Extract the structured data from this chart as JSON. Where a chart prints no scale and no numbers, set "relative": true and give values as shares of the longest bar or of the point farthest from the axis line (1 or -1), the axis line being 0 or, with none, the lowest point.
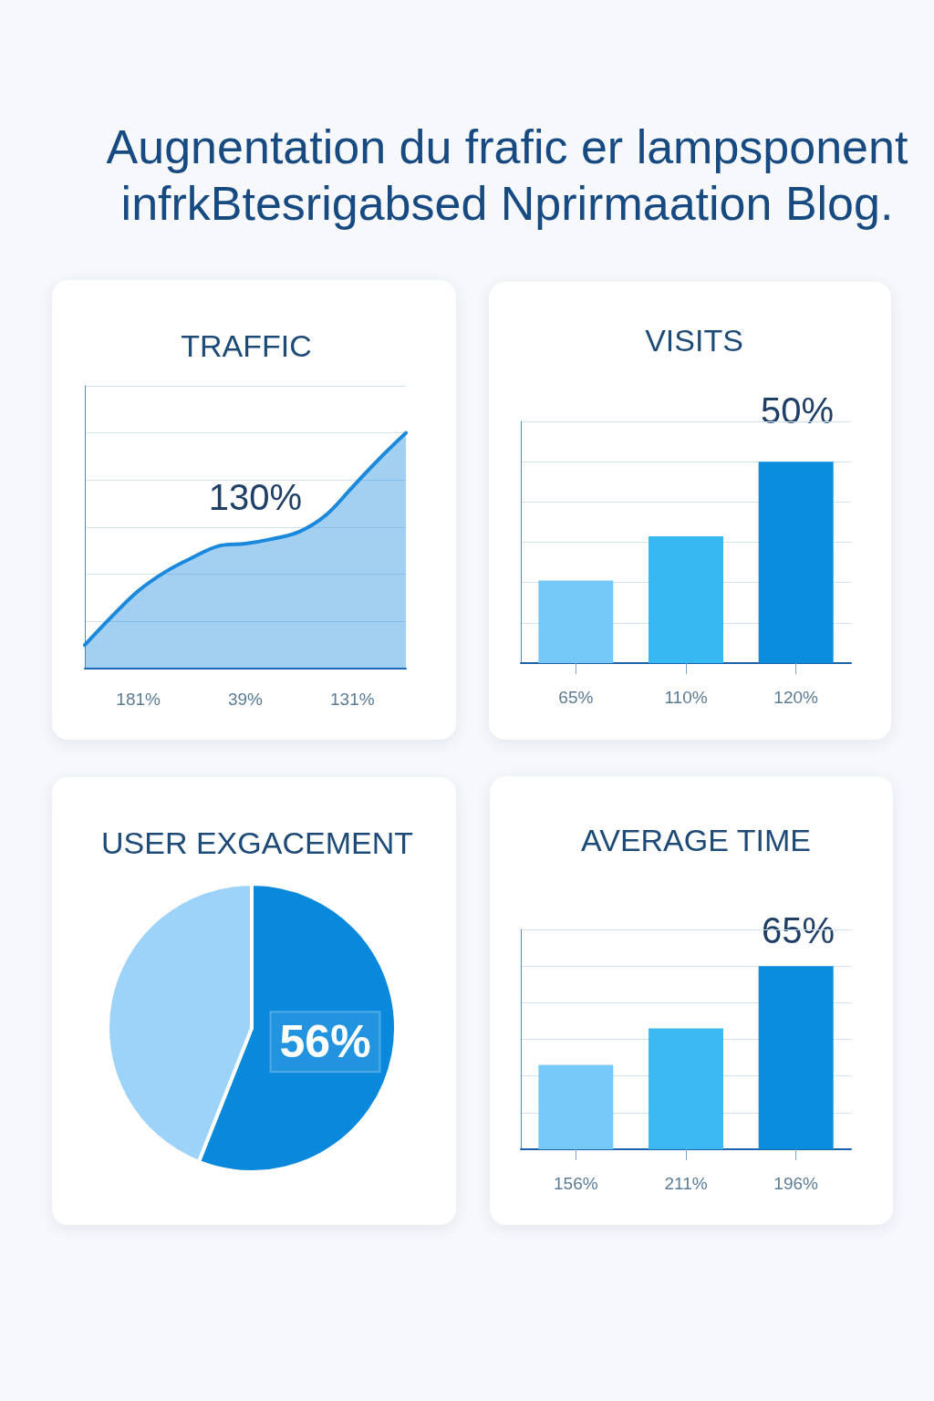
{
  "chart_data": [
    {
      "type": "other",
      "title": "Augnentation du frafic er lampsponent infrkBtesrigabsed Nprirmaation Blog."
    },
    {
      "type": "area",
      "title": "TRAFFIC",
      "categories": [
        null,
        null,
        "181%",
        null,
        null,
        null,
        "39%",
        null,
        null,
        null,
        "131%",
        null,
        null
      ],
      "values": [
        0.1,
        0.22,
        0.33,
        0.41,
        0.47,
        0.52,
        0.53,
        0.55,
        0.58,
        0.65,
        0.77,
        0.89,
        1
      ],
      "color": "#1a88dd",
      "relative": true,
      "grid": "y",
      "annotations": [
        "130%"
      ]
    },
    {
      "type": "bar",
      "title": "VISITS",
      "categories": [
        "65%",
        "110%",
        "120%"
      ],
      "values": [
        0.41,
        0.63,
        1
      ],
      "colors": [
        "#74c8f8",
        "#38b8f2",
        "#0b8ddd"
      ],
      "relative": true,
      "grid": "y",
      "annotations": [
        "50%"
      ]
    },
    {
      "type": "pie",
      "title": "USER EXGACEMENT",
      "categories": [
        null,
        null
      ],
      "values": [
        56,
        44
      ],
      "colors": [
        "#0a88dc",
        "#9dd3f9"
      ],
      "value_labels": [
        "56%",
        null
      ]
    },
    {
      "type": "bar",
      "title": "AVERAGE TIME",
      "categories": [
        "156%",
        "211%",
        "196%"
      ],
      "values": [
        0.46,
        0.66,
        1
      ],
      "colors": [
        "#76c9f8",
        "#3ab9f2",
        "#0b8ddd"
      ],
      "relative": true,
      "grid": "y",
      "annotations": [
        "65%"
      ]
    }
  ]
}
